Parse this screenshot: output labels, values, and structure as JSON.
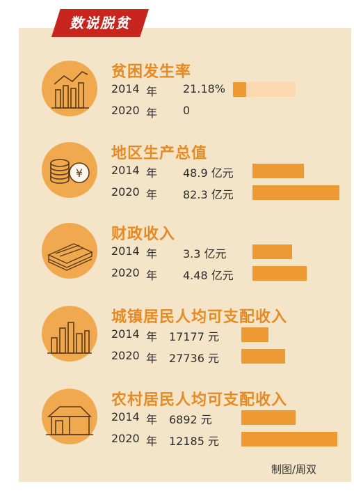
{
  "tag": "数说脱贫",
  "year_unit": "年",
  "credit": "制图/周双",
  "colors": {
    "panel": "#f5e5c8",
    "tag": "#c8251e",
    "accent": "#e58a25",
    "bar": "#ee9a34",
    "bar_track": "#fbd8b0",
    "circle": "#f1a94f"
  },
  "chart_data": [
    {
      "type": "bar",
      "title": "贫困发生率",
      "icon": "trend-bars-icon",
      "categories": [
        "2014",
        "2020"
      ],
      "values": [
        21.18,
        0
      ],
      "value_labels": [
        "21.18%",
        "0"
      ],
      "unit": "%",
      "scale_max": 100
    },
    {
      "type": "bar",
      "title": "地区生产总值",
      "icon": "coins-icon",
      "categories": [
        "2014",
        "2020"
      ],
      "values": [
        48.9,
        82.3
      ],
      "value_labels": [
        "48.9 亿元",
        "82.3 亿元"
      ],
      "unit": "亿元"
    },
    {
      "type": "bar",
      "title": "财政收入",
      "icon": "money-stack-icon",
      "categories": [
        "2014",
        "2020"
      ],
      "values": [
        3.3,
        4.48
      ],
      "value_labels": [
        "3.3 亿元",
        "4.48 亿元"
      ],
      "unit": "亿元"
    },
    {
      "type": "bar",
      "title": "城镇居民人均可支配收入",
      "icon": "city-buildings-icon",
      "categories": [
        "2014",
        "2020"
      ],
      "values": [
        17177,
        27736
      ],
      "value_labels": [
        "17177 元",
        "27736 元"
      ],
      "unit": "元"
    },
    {
      "type": "bar",
      "title": "农村居民人均可支配收入",
      "icon": "house-icon",
      "categories": [
        "2014",
        "2020"
      ],
      "values": [
        6892,
        12185
      ],
      "value_labels": [
        "6892 元",
        "12185 元"
      ],
      "unit": "元"
    }
  ]
}
